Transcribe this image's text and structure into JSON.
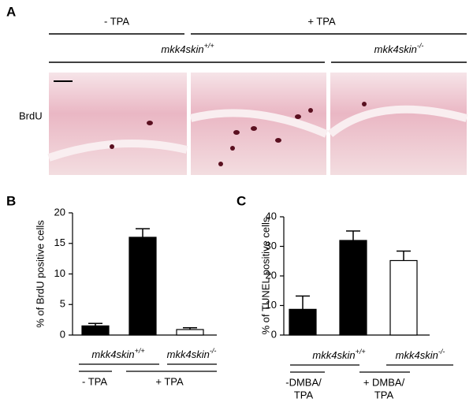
{
  "panel_a": {
    "panel": "A",
    "treatment_headers": [
      "- TPA",
      "+ TPA"
    ],
    "genotype_headers": [
      {
        "base": "mkk4skin",
        "sup": "+/+"
      },
      {
        "base": "mkk4skin",
        "sup": "-/-"
      }
    ],
    "row_label": "BrdU"
  },
  "chart_data": [
    {
      "type": "bar",
      "panel": "B",
      "ylabel": "% of BrdU positive cells",
      "categories": [
        null,
        null,
        null
      ],
      "values": [
        1.5,
        16,
        0.9
      ],
      "errors": [
        0.4,
        1.4,
        0.3
      ],
      "colors": [
        "#000000",
        "#000000",
        "#ffffff"
      ],
      "ylim": [
        0,
        20
      ],
      "yticks": [
        0,
        5,
        10,
        15,
        20
      ],
      "groups": [
        {
          "base": "mkk4skin",
          "sup": "+/+"
        },
        {
          "base": "mkk4skin",
          "sup": "-/-"
        }
      ],
      "treatments": [
        [
          "- TPA"
        ],
        [
          "+ TPA"
        ]
      ]
    },
    {
      "type": "bar",
      "panel": "C",
      "ylabel": "% of TUNEL positive cells",
      "categories": [
        null,
        null,
        null
      ],
      "values": [
        8.7,
        32,
        25.2
      ],
      "errors": [
        4.5,
        3.2,
        3.2
      ],
      "colors": [
        "#000000",
        "#000000",
        "#ffffff"
      ],
      "ylim": [
        0,
        40
      ],
      "yticks": [
        0,
        10,
        20,
        30,
        40
      ],
      "groups": [
        {
          "base": "mkk4skin",
          "sup": "+/+"
        },
        {
          "base": "mkk4skin",
          "sup": "-/-"
        }
      ],
      "treatments": [
        [
          "-DMBA/",
          "TPA"
        ],
        [
          "+ DMBA/",
          "TPA"
        ]
      ]
    }
  ]
}
